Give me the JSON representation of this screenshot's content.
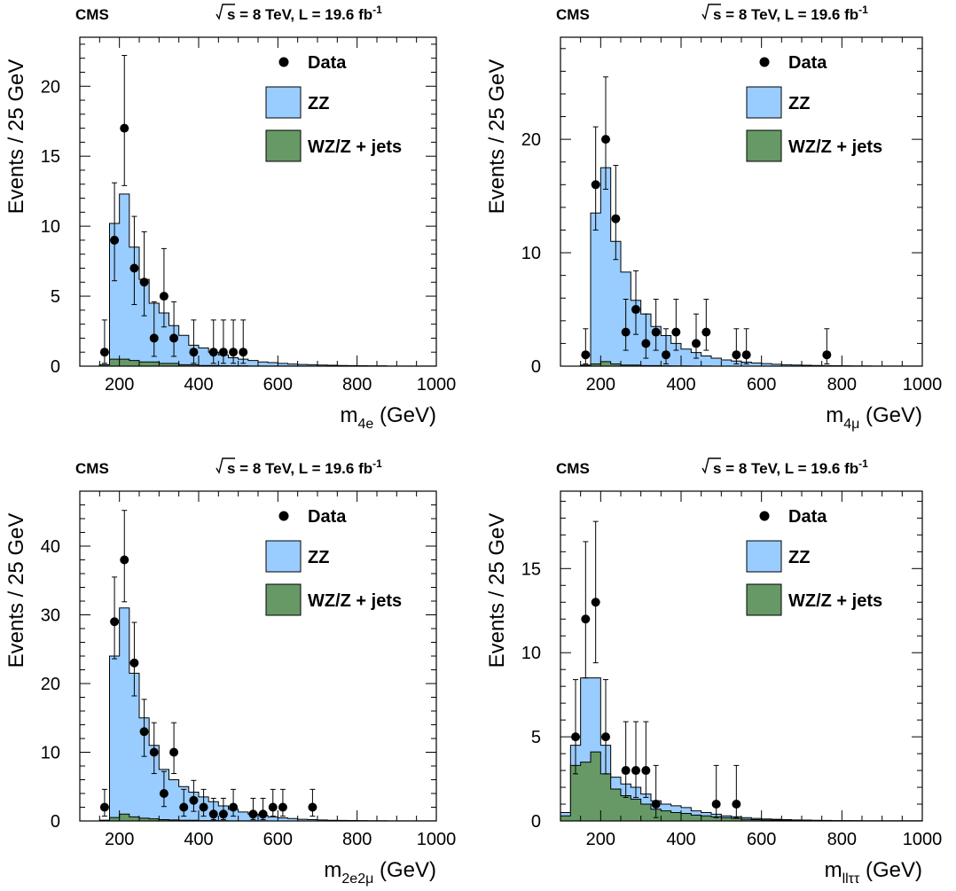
{
  "colors": {
    "zz": "#99ccff",
    "bkg": "#669966",
    "data": "#000000"
  },
  "legend": {
    "data": "Data",
    "zz": "ZZ",
    "bkg": "WZ/Z + jets"
  },
  "chart_data": [
    {
      "type": "histogram",
      "cms_label": "CMS",
      "energy_text": "s = 8 TeV, L = 19.6 fb",
      "lumi_superscript": "-1",
      "xlabel_main": "m",
      "xlabel_sub": "4e",
      "xlabel_unit": " (GeV)",
      "ylabel": "Events / 25 GeV",
      "xlim": [
        100,
        1000
      ],
      "ylim": [
        0,
        23.5
      ],
      "xticks": [
        200,
        400,
        600,
        800,
        1000
      ],
      "yticks": [
        0,
        5,
        10,
        15,
        20
      ],
      "bin_edges": [
        150,
        175,
        200,
        225,
        250,
        275,
        300,
        325,
        350,
        375,
        400,
        425,
        450,
        475,
        500,
        525,
        550,
        575,
        600,
        625,
        650,
        675,
        700,
        725,
        750,
        775,
        800,
        825,
        850,
        875,
        900,
        925,
        950,
        975,
        1000
      ],
      "zz_total": [
        0.1,
        10.2,
        12.3,
        8.5,
        6.2,
        4.5,
        3.8,
        2.9,
        2.2,
        1.5,
        1.3,
        1.0,
        0.8,
        0.6,
        0.5,
        0.4,
        0.3,
        0.25,
        0.2,
        0.15,
        0.12,
        0.1,
        0.08,
        0.06,
        0.05,
        0.04,
        0.03,
        0.02,
        0.02,
        0.01,
        0.01,
        0.01,
        0.01,
        0.01
      ],
      "bkg": [
        0.1,
        0.5,
        0.5,
        0.4,
        0.3,
        0.3,
        0.2,
        0.2,
        0.1,
        0.1,
        0.05,
        0.05,
        0.03,
        0.02,
        0.02,
        0.01,
        0.01,
        0.01,
        0.01,
        0.01,
        0,
        0,
        0,
        0,
        0,
        0,
        0,
        0,
        0,
        0,
        0,
        0,
        0,
        0
      ],
      "data_points": [
        {
          "x": 162.5,
          "y": 1,
          "err_up": 2.3,
          "err_down": 0.8
        },
        {
          "x": 187.5,
          "y": 9,
          "err_up": 4.1,
          "err_down": 2.9
        },
        {
          "x": 212.5,
          "y": 17,
          "err_up": 5.2,
          "err_down": 4.1
        },
        {
          "x": 237.5,
          "y": 7,
          "err_up": 3.7,
          "err_down": 2.6
        },
        {
          "x": 262.5,
          "y": 6,
          "err_up": 3.6,
          "err_down": 2.4
        },
        {
          "x": 287.5,
          "y": 2,
          "err_up": 2.6,
          "err_down": 1.3
        },
        {
          "x": 312.5,
          "y": 5,
          "err_up": 3.4,
          "err_down": 2.2
        },
        {
          "x": 337.5,
          "y": 2,
          "err_up": 2.6,
          "err_down": 1.3
        },
        {
          "x": 387.5,
          "y": 1,
          "err_up": 2.3,
          "err_down": 0.8
        },
        {
          "x": 437.5,
          "y": 1,
          "err_up": 2.3,
          "err_down": 0.8
        },
        {
          "x": 462.5,
          "y": 1,
          "err_up": 2.3,
          "err_down": 0.8
        },
        {
          "x": 487.5,
          "y": 1,
          "err_up": 2.3,
          "err_down": 0.8
        },
        {
          "x": 512.5,
          "y": 1,
          "err_up": 2.3,
          "err_down": 0.8
        }
      ]
    },
    {
      "type": "histogram",
      "cms_label": "CMS",
      "energy_text": "s = 8 TeV, L = 19.6 fb",
      "lumi_superscript": "-1",
      "xlabel_main": "m",
      "xlabel_sub": "4μ",
      "xlabel_unit": " (GeV)",
      "ylabel": "Events / 25 GeV",
      "xlim": [
        100,
        1000
      ],
      "ylim": [
        0,
        29
      ],
      "xticks": [
        200,
        400,
        600,
        800,
        1000
      ],
      "yticks": [
        0,
        10,
        20
      ],
      "bin_edges": [
        150,
        175,
        200,
        225,
        250,
        275,
        300,
        325,
        350,
        375,
        400,
        425,
        450,
        475,
        500,
        525,
        550,
        575,
        600,
        625,
        650,
        675,
        700,
        725,
        750,
        775,
        800,
        825,
        850,
        875,
        900,
        925,
        950,
        975,
        1000
      ],
      "zz_total": [
        0.1,
        13.5,
        17.5,
        11.0,
        8.3,
        5.8,
        4.6,
        3.5,
        2.7,
        2.0,
        1.5,
        1.2,
        0.9,
        0.7,
        0.55,
        0.45,
        0.35,
        0.28,
        0.22,
        0.17,
        0.13,
        0.1,
        0.08,
        0.06,
        0.05,
        0.04,
        0.03,
        0.02,
        0.02,
        0.01,
        0.01,
        0.01,
        0.01,
        0.01
      ],
      "bkg": [
        0.05,
        0.2,
        0.4,
        0.2,
        0.1,
        0.1,
        0.05,
        0.05,
        0.03,
        0.02,
        0.02,
        0.01,
        0.01,
        0,
        0,
        0,
        0,
        0,
        0,
        0,
        0,
        0,
        0,
        0,
        0,
        0,
        0,
        0,
        0,
        0,
        0,
        0,
        0,
        0
      ],
      "data_points": [
        {
          "x": 162.5,
          "y": 1,
          "err_up": 2.3,
          "err_down": 0.8
        },
        {
          "x": 187.5,
          "y": 16,
          "err_up": 5.1,
          "err_down": 4.0
        },
        {
          "x": 212.5,
          "y": 20,
          "err_up": 5.5,
          "err_down": 4.4
        },
        {
          "x": 237.5,
          "y": 13,
          "err_up": 4.7,
          "err_down": 3.6
        },
        {
          "x": 262.5,
          "y": 3,
          "err_up": 2.9,
          "err_down": 1.6
        },
        {
          "x": 287.5,
          "y": 5,
          "err_up": 3.4,
          "err_down": 2.2
        },
        {
          "x": 312.5,
          "y": 2,
          "err_up": 2.6,
          "err_down": 1.3
        },
        {
          "x": 337.5,
          "y": 3,
          "err_up": 2.9,
          "err_down": 1.6
        },
        {
          "x": 362.5,
          "y": 1,
          "err_up": 2.3,
          "err_down": 0.8
        },
        {
          "x": 387.5,
          "y": 3,
          "err_up": 2.9,
          "err_down": 1.6
        },
        {
          "x": 437.5,
          "y": 2,
          "err_up": 2.6,
          "err_down": 1.3
        },
        {
          "x": 462.5,
          "y": 3,
          "err_up": 2.9,
          "err_down": 1.6
        },
        {
          "x": 537.5,
          "y": 1,
          "err_up": 2.3,
          "err_down": 0.8
        },
        {
          "x": 562.5,
          "y": 1,
          "err_up": 2.3,
          "err_down": 0.8
        },
        {
          "x": 762.5,
          "y": 1,
          "err_up": 2.3,
          "err_down": 0.8
        }
      ]
    },
    {
      "type": "histogram",
      "cms_label": "CMS",
      "energy_text": "s = 8 TeV, L = 19.6 fb",
      "lumi_superscript": "-1",
      "xlabel_main": "m",
      "xlabel_sub": "2e2μ",
      "xlabel_unit": " (GeV)",
      "ylabel": "Events / 25 GeV",
      "xlim": [
        100,
        1000
      ],
      "ylim": [
        0,
        48
      ],
      "xticks": [
        200,
        400,
        600,
        800,
        1000
      ],
      "yticks": [
        0,
        10,
        20,
        30,
        40
      ],
      "bin_edges": [
        150,
        175,
        200,
        225,
        250,
        275,
        300,
        325,
        350,
        375,
        400,
        425,
        450,
        475,
        500,
        525,
        550,
        575,
        600,
        625,
        650,
        675,
        700,
        725,
        750,
        775,
        800,
        825,
        850,
        875,
        900,
        925,
        950,
        975,
        1000
      ],
      "zz_total": [
        0.1,
        24.0,
        31.0,
        21.5,
        15.0,
        11.0,
        7.5,
        6.0,
        5.0,
        4.2,
        3.5,
        2.8,
        2.2,
        1.7,
        1.3,
        1.0,
        0.8,
        0.6,
        0.45,
        0.35,
        0.25,
        0.2,
        0.15,
        0.1,
        0.08,
        0.06,
        0.05,
        0.04,
        0.03,
        0.02,
        0.02,
        0.01,
        0.01,
        0.01
      ],
      "bkg": [
        0.1,
        0.5,
        1.0,
        0.6,
        0.4,
        0.3,
        0.2,
        0.15,
        0.1,
        0.1,
        0.05,
        0.05,
        0.03,
        0.02,
        0.02,
        0.01,
        0.01,
        0,
        0,
        0,
        0,
        0,
        0,
        0,
        0,
        0,
        0,
        0,
        0,
        0,
        0,
        0,
        0,
        0
      ],
      "data_points": [
        {
          "x": 162.5,
          "y": 2,
          "err_up": 2.6,
          "err_down": 1.3
        },
        {
          "x": 187.5,
          "y": 29,
          "err_up": 6.5,
          "err_down": 5.4
        },
        {
          "x": 212.5,
          "y": 38,
          "err_up": 7.2,
          "err_down": 6.1
        },
        {
          "x": 237.5,
          "y": 23,
          "err_up": 5.9,
          "err_down": 4.8
        },
        {
          "x": 262.5,
          "y": 13,
          "err_up": 4.7,
          "err_down": 3.6
        },
        {
          "x": 287.5,
          "y": 10,
          "err_up": 4.3,
          "err_down": 3.1
        },
        {
          "x": 312.5,
          "y": 4,
          "err_up": 3.2,
          "err_down": 1.9
        },
        {
          "x": 337.5,
          "y": 10,
          "err_up": 4.3,
          "err_down": 3.1
        },
        {
          "x": 362.5,
          "y": 2,
          "err_up": 2.6,
          "err_down": 1.3
        },
        {
          "x": 387.5,
          "y": 3,
          "err_up": 2.9,
          "err_down": 1.6
        },
        {
          "x": 412.5,
          "y": 2,
          "err_up": 2.6,
          "err_down": 1.3
        },
        {
          "x": 437.5,
          "y": 1,
          "err_up": 2.3,
          "err_down": 0.8
        },
        {
          "x": 462.5,
          "y": 1,
          "err_up": 2.3,
          "err_down": 0.8
        },
        {
          "x": 487.5,
          "y": 2,
          "err_up": 2.6,
          "err_down": 1.3
        },
        {
          "x": 537.5,
          "y": 1,
          "err_up": 2.3,
          "err_down": 0.8
        },
        {
          "x": 562.5,
          "y": 1,
          "err_up": 2.3,
          "err_down": 0.8
        },
        {
          "x": 587.5,
          "y": 2,
          "err_up": 2.6,
          "err_down": 1.3
        },
        {
          "x": 612.5,
          "y": 2,
          "err_up": 2.6,
          "err_down": 1.3
        },
        {
          "x": 687.5,
          "y": 2,
          "err_up": 2.6,
          "err_down": 1.3
        }
      ]
    },
    {
      "type": "histogram",
      "cms_label": "CMS",
      "energy_text": "s = 8 TeV, L = 19.6 fb",
      "lumi_superscript": "-1",
      "xlabel_main": "m",
      "xlabel_sub": "llττ",
      "xlabel_unit": " (GeV)",
      "ylabel": "Events / 25 GeV",
      "xlim": [
        100,
        1000
      ],
      "ylim": [
        0,
        19.6
      ],
      "xticks": [
        200,
        400,
        600,
        800,
        1000
      ],
      "yticks": [
        0,
        5,
        10,
        15
      ],
      "bin_edges": [
        100,
        125,
        150,
        175,
        200,
        225,
        250,
        275,
        300,
        325,
        350,
        375,
        400,
        425,
        450,
        475,
        500,
        525,
        550,
        575,
        600,
        625,
        650,
        675,
        700,
        725,
        750,
        775,
        800,
        825,
        850,
        875,
        900,
        925,
        950,
        975,
        1000
      ],
      "zz_total": [
        0.5,
        4.5,
        8.5,
        8.5,
        4.5,
        2.6,
        2.2,
        2.0,
        1.6,
        1.2,
        1.0,
        0.9,
        0.8,
        0.6,
        0.5,
        0.4,
        0.3,
        0.25,
        0.2,
        0.15,
        0.12,
        0.1,
        0.08,
        0.06,
        0.05,
        0.04,
        0.03,
        0.02,
        0.02,
        0.01,
        0.01,
        0.01,
        0.01,
        0.01,
        0.01,
        0.01
      ],
      "bkg": [
        0.3,
        3.3,
        3.5,
        4.1,
        2.8,
        1.9,
        1.5,
        1.3,
        1.0,
        0.7,
        0.6,
        0.5,
        0.45,
        0.35,
        0.3,
        0.25,
        0.2,
        0.15,
        0.1,
        0.08,
        0.06,
        0.05,
        0.04,
        0.03,
        0.02,
        0.02,
        0.01,
        0.01,
        0.01,
        0.01,
        0,
        0,
        0,
        0,
        0,
        0
      ],
      "data_points": [
        {
          "x": 137.5,
          "y": 5,
          "err_up": 3.4,
          "err_down": 2.2
        },
        {
          "x": 162.5,
          "y": 12,
          "err_up": 4.6,
          "err_down": 3.5
        },
        {
          "x": 187.5,
          "y": 13,
          "err_up": 4.8,
          "err_down": 3.6
        },
        {
          "x": 212.5,
          "y": 5,
          "err_up": 3.4,
          "err_down": 2.2
        },
        {
          "x": 262.5,
          "y": 3,
          "err_up": 2.9,
          "err_down": 1.6
        },
        {
          "x": 287.5,
          "y": 3,
          "err_up": 2.9,
          "err_down": 1.6
        },
        {
          "x": 312.5,
          "y": 3,
          "err_up": 2.9,
          "err_down": 1.6
        },
        {
          "x": 337.5,
          "y": 1,
          "err_up": 2.3,
          "err_down": 0.8
        },
        {
          "x": 487.5,
          "y": 1,
          "err_up": 2.3,
          "err_down": 0.8
        },
        {
          "x": 537.5,
          "y": 1,
          "err_up": 2.3,
          "err_down": 0.8
        }
      ]
    }
  ]
}
